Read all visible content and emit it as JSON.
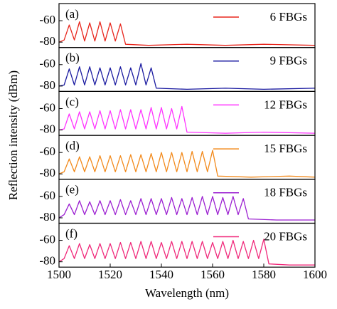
{
  "chart_data": [
    {
      "type": "line",
      "annotation": "(a)",
      "ylabel": "Reflection intensity (dBm)",
      "xlim": [
        1500,
        1600
      ],
      "ylim": [
        -85,
        -44
      ],
      "yticks": [
        -60,
        -80
      ],
      "x": [
        1500,
        1502,
        1504,
        1506,
        1508,
        1510,
        1512,
        1514,
        1516,
        1518,
        1520,
        1522,
        1524,
        1526,
        1535,
        1550,
        1565,
        1580,
        1600
      ],
      "series": [
        {
          "name": "6 FBGs",
          "color": "#e8261d",
          "values": [
            -80,
            -78,
            -64,
            -78,
            -61,
            -79,
            -62,
            -79,
            -61,
            -79,
            -62,
            -79,
            -63,
            -82,
            -83,
            -82,
            -83,
            -82,
            -83
          ]
        }
      ]
    },
    {
      "type": "line",
      "annotation": "(b)",
      "xlim": [
        1500,
        1600
      ],
      "ylim": [
        -85,
        -44
      ],
      "yticks": [
        -60,
        -80
      ],
      "x": [
        1500,
        1502,
        1504,
        1506,
        1508,
        1510,
        1512,
        1514,
        1516,
        1518,
        1520,
        1522,
        1524,
        1526,
        1528,
        1530,
        1532,
        1534,
        1536,
        1538,
        1550,
        1565,
        1580,
        1600
      ],
      "series": [
        {
          "name": "9 FBGs",
          "color": "#1a1aa0",
          "values": [
            -80,
            -79,
            -64,
            -79,
            -62,
            -79,
            -62,
            -79,
            -63,
            -79,
            -63,
            -79,
            -62,
            -79,
            -63,
            -79,
            -59,
            -79,
            -63,
            -82,
            -83,
            -82,
            -83,
            -82
          ]
        }
      ]
    },
    {
      "type": "line",
      "annotation": "(c)",
      "xlim": [
        1500,
        1600
      ],
      "ylim": [
        -85,
        -44
      ],
      "yticks": [
        -60,
        -80
      ],
      "x": [
        1500,
        1502,
        1504,
        1506,
        1508,
        1510,
        1512,
        1514,
        1516,
        1518,
        1520,
        1522,
        1524,
        1526,
        1528,
        1530,
        1532,
        1534,
        1536,
        1538,
        1540,
        1542,
        1544,
        1546,
        1548,
        1550,
        1565,
        1580,
        1600
      ],
      "series": [
        {
          "name": "12 FBGs",
          "color": "#ff33ff",
          "values": [
            -80,
            -79,
            -65,
            -79,
            -63,
            -79,
            -63,
            -79,
            -62,
            -79,
            -62,
            -79,
            -61,
            -79,
            -61,
            -79,
            -61,
            -79,
            -59,
            -79,
            -59,
            -79,
            -60,
            -79,
            -58,
            -82,
            -83,
            -82,
            -83
          ]
        }
      ]
    },
    {
      "type": "line",
      "annotation": "(d)",
      "xlim": [
        1500,
        1600
      ],
      "ylim": [
        -85,
        -44
      ],
      "yticks": [
        -60,
        -80
      ],
      "x": [
        1500,
        1502,
        1504,
        1506,
        1508,
        1510,
        1512,
        1514,
        1516,
        1518,
        1520,
        1522,
        1524,
        1526,
        1528,
        1530,
        1532,
        1534,
        1536,
        1538,
        1540,
        1542,
        1544,
        1546,
        1548,
        1550,
        1552,
        1554,
        1556,
        1558,
        1560,
        1562,
        1575,
        1590,
        1600
      ],
      "series": [
        {
          "name": "15 FBGs",
          "color": "#f28a1c",
          "values": [
            -80,
            -78,
            -66,
            -78,
            -64,
            -78,
            -64,
            -78,
            -63,
            -78,
            -63,
            -78,
            -63,
            -78,
            -62,
            -78,
            -62,
            -78,
            -61,
            -78,
            -60,
            -78,
            -60,
            -78,
            -60,
            -78,
            -59,
            -78,
            -59,
            -78,
            -58,
            -82,
            -83,
            -82,
            -83
          ]
        }
      ]
    },
    {
      "type": "line",
      "annotation": "(e)",
      "xlim": [
        1500,
        1600
      ],
      "ylim": [
        -85,
        -44
      ],
      "yticks": [
        -60,
        -80
      ],
      "x": [
        1500,
        1502,
        1504,
        1506,
        1508,
        1510,
        1512,
        1514,
        1516,
        1518,
        1520,
        1522,
        1524,
        1526,
        1528,
        1530,
        1532,
        1534,
        1536,
        1538,
        1540,
        1542,
        1544,
        1546,
        1548,
        1550,
        1552,
        1554,
        1556,
        1558,
        1560,
        1562,
        1564,
        1566,
        1568,
        1570,
        1572,
        1574,
        1585,
        1600
      ],
      "series": [
        {
          "name": "18 FBGs",
          "color": "#9b1fd1",
          "values": [
            -80,
            -77,
            -67,
            -77,
            -64,
            -77,
            -65,
            -77,
            -64,
            -77,
            -64,
            -77,
            -63,
            -77,
            -64,
            -77,
            -62,
            -77,
            -62,
            -77,
            -62,
            -77,
            -61,
            -77,
            -62,
            -77,
            -61,
            -77,
            -60,
            -77,
            -60,
            -77,
            -61,
            -77,
            -60,
            -77,
            -62,
            -81,
            -82,
            -82
          ]
        }
      ]
    },
    {
      "type": "line",
      "annotation": "(f)",
      "xlabel": "Wavelength (nm)",
      "xlim": [
        1500,
        1600
      ],
      "xticks": [
        1500,
        1520,
        1540,
        1560,
        1580,
        1600
      ],
      "ylim": [
        -85,
        -44
      ],
      "yticks": [
        -60,
        -80
      ],
      "x": [
        1500,
        1502,
        1504,
        1506,
        1508,
        1510,
        1512,
        1514,
        1516,
        1518,
        1520,
        1522,
        1524,
        1526,
        1528,
        1530,
        1532,
        1534,
        1536,
        1538,
        1540,
        1542,
        1544,
        1546,
        1548,
        1550,
        1552,
        1554,
        1556,
        1558,
        1560,
        1562,
        1564,
        1566,
        1568,
        1570,
        1572,
        1574,
        1576,
        1578,
        1580,
        1582,
        1590,
        1600
      ],
      "series": [
        {
          "name": "20 FBGs",
          "color": "#f0287a",
          "values": [
            -80,
            -77,
            -65,
            -77,
            -63,
            -77,
            -64,
            -77,
            -63,
            -77,
            -63,
            -77,
            -62,
            -77,
            -62,
            -77,
            -61,
            -77,
            -61,
            -77,
            -62,
            -77,
            -61,
            -77,
            -61,
            -77,
            -61,
            -77,
            -61,
            -77,
            -62,
            -77,
            -61,
            -77,
            -60,
            -77,
            -61,
            -77,
            -60,
            -77,
            -59,
            -82,
            -83,
            -83
          ]
        }
      ]
    }
  ]
}
